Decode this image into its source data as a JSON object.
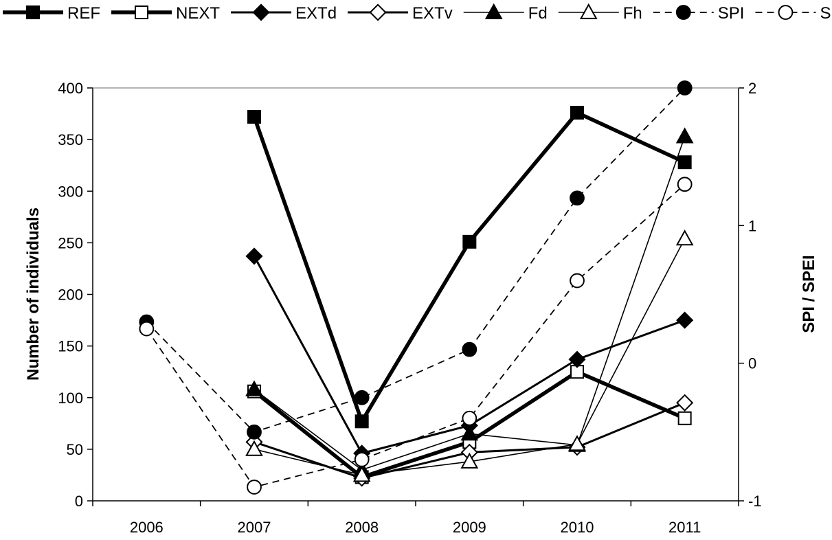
{
  "chart_data": {
    "type": "line",
    "categories": [
      "2006",
      "2007",
      "2008",
      "2009",
      "2010",
      "2011"
    ],
    "ylabel": "Number of individuals",
    "y2label": "SPI / SPEI",
    "ylim": [
      0,
      400
    ],
    "y2lim": [
      -1,
      2
    ],
    "yticks": [
      "0",
      "50",
      "100",
      "150",
      "200",
      "250",
      "300",
      "350",
      "400"
    ],
    "y2ticks": [
      "-1",
      "0",
      "1",
      "2"
    ],
    "grid": false,
    "legend_position": "top",
    "series": [
      {
        "name": "REF",
        "axis": "left",
        "style": "thick-solid",
        "marker": "square-filled",
        "values": [
          null,
          372,
          77,
          251,
          376,
          328
        ]
      },
      {
        "name": "NEXT",
        "axis": "left",
        "style": "thick-solid",
        "marker": "square-open",
        "values": [
          null,
          106,
          23,
          57,
          125,
          80
        ]
      },
      {
        "name": "EXTd",
        "axis": "left",
        "style": "medium-solid",
        "marker": "diamond-filled",
        "values": [
          null,
          237,
          46,
          73,
          137,
          175
        ]
      },
      {
        "name": "EXTv",
        "axis": "left",
        "style": "medium-solid",
        "marker": "diamond-open",
        "values": [
          null,
          57,
          22,
          47,
          52,
          95
        ]
      },
      {
        "name": "Fd",
        "axis": "left",
        "style": "thin-solid",
        "marker": "triangle-filled",
        "values": [
          null,
          108,
          30,
          65,
          54,
          353
        ]
      },
      {
        "name": "Fh",
        "axis": "left",
        "style": "thin-solid",
        "marker": "triangle-open",
        "values": [
          null,
          50,
          25,
          38,
          55,
          254
        ]
      },
      {
        "name": "SPI",
        "axis": "right",
        "style": "dashed",
        "marker": "circle-filled",
        "values": [
          0.3,
          -0.5,
          -0.25,
          0.1,
          1.2,
          2.0
        ]
      },
      {
        "name": "SPEI",
        "axis": "right",
        "style": "dashed",
        "marker": "circle-open",
        "values": [
          0.25,
          -0.9,
          -0.7,
          -0.4,
          0.6,
          1.3
        ]
      }
    ]
  }
}
